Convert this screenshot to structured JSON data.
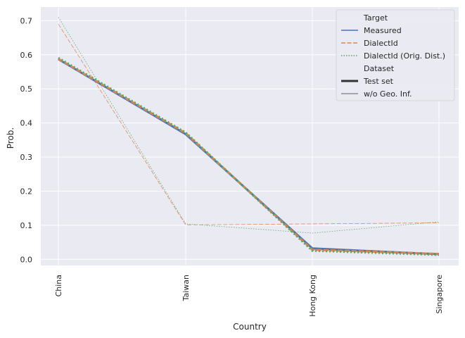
{
  "chart_data": {
    "type": "line",
    "xlabel": "Country",
    "ylabel": "Prob.",
    "categories": [
      "China",
      "Taiwan",
      "Hong Kong",
      "Singapore"
    ],
    "ylim": [
      -0.018,
      0.74
    ],
    "yticks": [
      "0.0",
      "0.1",
      "0.2",
      "0.3",
      "0.4",
      "0.5",
      "0.6",
      "0.7"
    ],
    "grid": true,
    "legend_position": "top-right",
    "legend": {
      "target_title": "Target",
      "dataset_title": "Dataset",
      "targets": [
        "Measured",
        "DialectId",
        "DialectId (Orig. Dist.)"
      ],
      "datasets": [
        "Test set",
        "w/o Geo. Inf."
      ]
    },
    "colors": {
      "Measured": "#4c72b0",
      "DialectId": "#dd8452",
      "DialectId (Orig. Dist.)": "#55a868",
      "background": "#eaeaf2",
      "grid": "#ffffff"
    },
    "series": [
      {
        "target": "Measured",
        "dataset": "Test set",
        "values": [
          0.587,
          0.367,
          0.032,
          0.015
        ]
      },
      {
        "target": "DialectId",
        "dataset": "Test set",
        "values": [
          0.588,
          0.37,
          0.028,
          0.016
        ]
      },
      {
        "target": "DialectId (Orig. Dist.)",
        "dataset": "Test set",
        "values": [
          0.591,
          0.372,
          0.025,
          0.013
        ]
      },
      {
        "target": "DialectId",
        "dataset": "w/o Geo. Inf.",
        "values": [
          0.69,
          0.101,
          0.104,
          0.107
        ]
      },
      {
        "target": "DialectId (Orig. Dist.)",
        "dataset": "w/o Geo. Inf.",
        "values": [
          0.71,
          0.104,
          0.077,
          0.11
        ]
      }
    ]
  }
}
